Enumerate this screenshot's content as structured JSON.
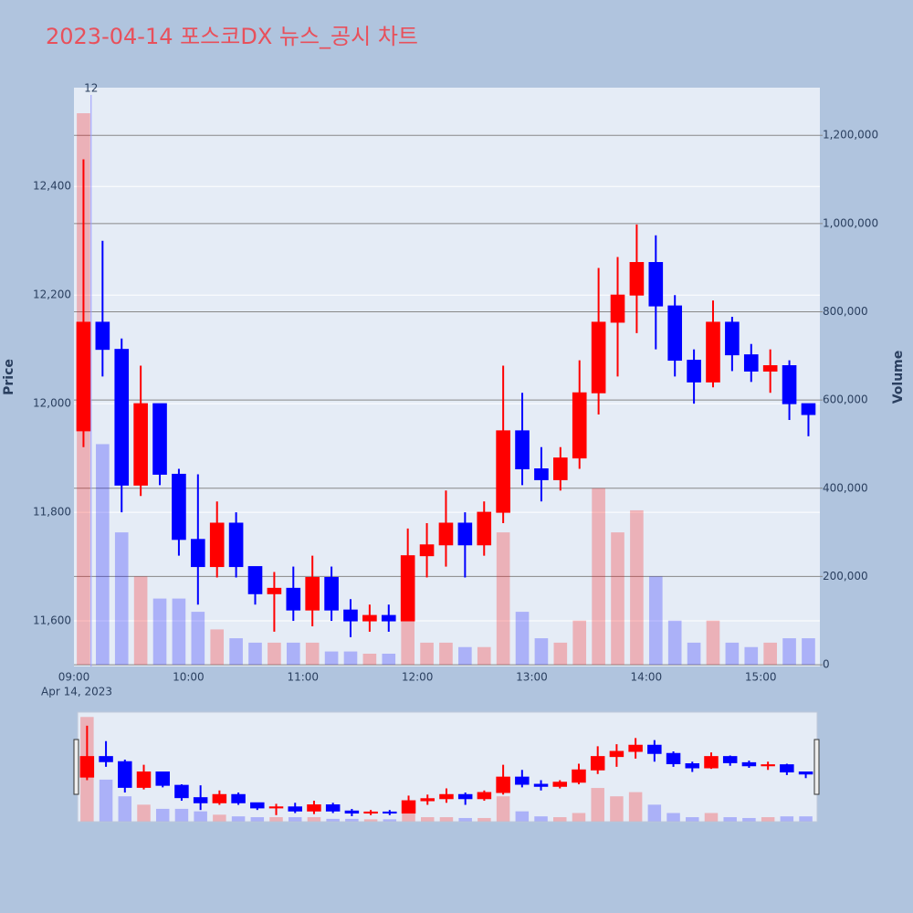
{
  "chart_data": {
    "type": "candlestick",
    "title": "2023-04-14 포스코DX 뉴스_공시 차트",
    "y_title": "Price",
    "y2_title": "Volume",
    "x_date_label": "Apr 14, 2023",
    "increasing_color": "#ff0000",
    "decreasing_color": "#0000ff",
    "x": [
      "09:00",
      "09:10",
      "09:20",
      "09:30",
      "09:40",
      "09:50",
      "10:00",
      "10:10",
      "10:20",
      "10:30",
      "10:40",
      "10:50",
      "11:00",
      "11:10",
      "11:20",
      "11:30",
      "11:40",
      "11:50",
      "12:00",
      "12:10",
      "12:20",
      "12:30",
      "12:40",
      "12:50",
      "13:00",
      "13:10",
      "13:20",
      "13:30",
      "13:40",
      "13:50",
      "14:00",
      "14:10",
      "14:20",
      "14:30",
      "14:40",
      "14:50",
      "15:00",
      "15:10",
      "15:20"
    ],
    "open": [
      11950,
      12150,
      12100,
      11850,
      12000,
      11870,
      11750,
      11700,
      11780,
      11700,
      11650,
      11660,
      11620,
      11680,
      11620,
      11600,
      11610,
      11600,
      11720,
      11740,
      11780,
      11740,
      11800,
      11950,
      11880,
      11860,
      11900,
      12020,
      12150,
      12200,
      12260,
      12180,
      12080,
      12040,
      12150,
      12090,
      12060,
      12070,
      12000
    ],
    "high": [
      12450,
      12300,
      12120,
      12070,
      12000,
      11880,
      11870,
      11820,
      11800,
      11700,
      11690,
      11700,
      11720,
      11700,
      11640,
      11630,
      11630,
      11770,
      11780,
      11840,
      11800,
      11820,
      12070,
      12020,
      11920,
      11920,
      12080,
      12250,
      12270,
      12330,
      12310,
      12200,
      12100,
      12190,
      12160,
      12110,
      12100,
      12080,
      12000
    ],
    "low": [
      11920,
      12050,
      11800,
      11830,
      11850,
      11720,
      11630,
      11680,
      11680,
      11630,
      11580,
      11600,
      11590,
      11600,
      11570,
      11580,
      11580,
      11600,
      11680,
      11700,
      11680,
      11720,
      11780,
      11850,
      11820,
      11840,
      11880,
      11980,
      12050,
      12130,
      12100,
      12050,
      12000,
      12030,
      12060,
      12040,
      12020,
      11970,
      11940
    ],
    "close": [
      12150,
      12100,
      11850,
      12000,
      11870,
      11750,
      11700,
      11780,
      11700,
      11650,
      11660,
      11620,
      11680,
      11620,
      11600,
      11610,
      11600,
      11720,
      11740,
      11780,
      11740,
      11800,
      11950,
      11880,
      11860,
      11900,
      12020,
      12150,
      12200,
      12260,
      12180,
      12080,
      12040,
      12150,
      12090,
      12060,
      12070,
      12000,
      11980
    ],
    "volume": [
      1250000,
      500000,
      300000,
      200000,
      150000,
      150000,
      120000,
      80000,
      60000,
      50000,
      50000,
      50000,
      50000,
      30000,
      30000,
      25000,
      25000,
      120000,
      50000,
      50000,
      40000,
      40000,
      300000,
      120000,
      60000,
      50000,
      100000,
      400000,
      300000,
      350000,
      200000,
      100000,
      50000,
      100000,
      50000,
      40000,
      50000,
      60000,
      60000
    ],
    "xlim": [
      "09:00",
      "15:31"
    ],
    "xticks": [
      "09:00",
      "10:00",
      "11:00",
      "12:00",
      "13:00",
      "14:00",
      "15:00"
    ],
    "ylim": [
      11516,
      12582
    ],
    "yticks": [
      {
        "value": 11600,
        "label": "11,600"
      },
      {
        "value": 11800,
        "label": "11,800"
      },
      {
        "value": 12000,
        "label": "12,000"
      },
      {
        "value": 12200,
        "label": "12,200"
      },
      {
        "value": 12400,
        "label": "12,400"
      }
    ],
    "y2lim": [
      -4000,
      1308000
    ],
    "y2ticks": [
      0,
      {
        "value": 200000,
        "label": "200,000"
      },
      {
        "value": 400000,
        "label": "400,000"
      },
      {
        "value": 600000,
        "label": "600,000"
      },
      {
        "value": 800000,
        "label": "800,000"
      },
      {
        "value": 1000000,
        "label": "1,000,000"
      },
      {
        "value": 1200000,
        "label": "1,200,000"
      }
    ],
    "annotations": [
      {
        "text": "12",
        "x": "09:09"
      }
    ]
  }
}
